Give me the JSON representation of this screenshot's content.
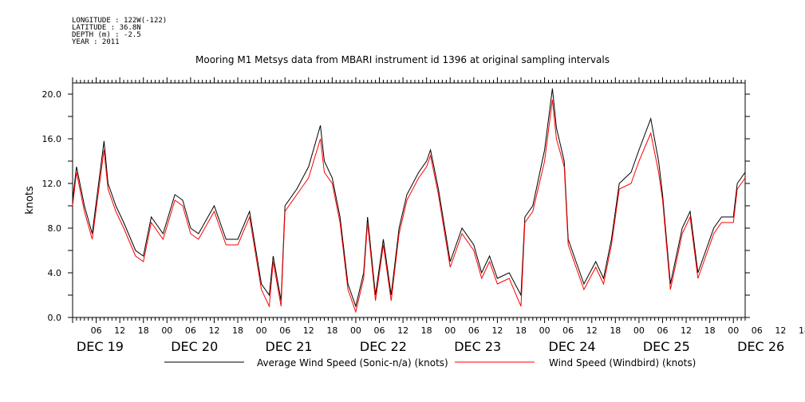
{
  "header": {
    "longitude": "LONGITUDE : 122W(-122)",
    "latitude": "LATITUDE : 36.8N",
    "depth": "DEPTH (m) : -2.5",
    "year": "YEAR : 2011"
  },
  "chart_data": {
    "type": "line",
    "title": "Mooring M1 Metsys data from MBARI instrument id 1396 at original sampling intervals",
    "ylabel": "knots",
    "ylim": [
      0,
      21
    ],
    "y_ticks": [
      "0.0",
      "4.0",
      "8.0",
      "12.0",
      "16.0",
      "20.0"
    ],
    "hour_ticks": [
      "06",
      "12",
      "18",
      "00",
      "06",
      "12",
      "18",
      "00",
      "06",
      "12",
      "18",
      "00",
      "06",
      "12",
      "18",
      "00",
      "06",
      "12",
      "18",
      "00",
      "06",
      "12",
      "18",
      "00",
      "06",
      "12",
      "18",
      "00",
      "06",
      "12",
      "18",
      "00"
    ],
    "day_labels": [
      "DEC 19",
      "DEC 20",
      "DEC 21",
      "DEC 22",
      "DEC 23",
      "DEC 24",
      "DEC 25",
      "DEC 26"
    ],
    "x_start": "2011-12-19 00:00",
    "x_end": "2011-12-26 03:00",
    "grid": false,
    "legend_position": "bottom",
    "series": [
      {
        "name": "Average Wind Speed (Sonic-n/a) (knots)",
        "color": "#000000",
        "points": [
          [
            "2011-12-19 00:00",
            10.5
          ],
          [
            "2011-12-19 01:00",
            13.5
          ],
          [
            "2011-12-19 03:00",
            10.0
          ],
          [
            "2011-12-19 05:00",
            7.5
          ],
          [
            "2011-12-19 08:00",
            15.8
          ],
          [
            "2011-12-19 09:00",
            12.0
          ],
          [
            "2011-12-19 11:00",
            10.0
          ],
          [
            "2011-12-19 13:00",
            8.5
          ],
          [
            "2011-12-19 16:00",
            6.0
          ],
          [
            "2011-12-19 18:00",
            5.5
          ],
          [
            "2011-12-19 20:00",
            9.0
          ],
          [
            "2011-12-19 23:00",
            7.5
          ],
          [
            "2011-12-20 02:00",
            11.0
          ],
          [
            "2011-12-20 04:00",
            10.5
          ],
          [
            "2011-12-20 06:00",
            8.0
          ],
          [
            "2011-12-20 08:00",
            7.5
          ],
          [
            "2011-12-20 12:00",
            10.0
          ],
          [
            "2011-12-20 15:00",
            7.0
          ],
          [
            "2011-12-20 18:00",
            7.0
          ],
          [
            "2011-12-20 21:00",
            9.5
          ],
          [
            "2011-12-21 00:00",
            3.0
          ],
          [
            "2011-12-21 02:00",
            2.0
          ],
          [
            "2011-12-21 03:00",
            5.5
          ],
          [
            "2011-12-21 05:00",
            1.5
          ],
          [
            "2011-12-21 06:00",
            10.0
          ],
          [
            "2011-12-21 09:00",
            11.5
          ],
          [
            "2011-12-21 12:00",
            13.5
          ],
          [
            "2011-12-21 15:00",
            17.2
          ],
          [
            "2011-12-21 16:00",
            14.0
          ],
          [
            "2011-12-21 18:00",
            12.5
          ],
          [
            "2011-12-21 20:00",
            9.0
          ],
          [
            "2011-12-21 22:00",
            3.0
          ],
          [
            "2011-12-22 00:00",
            1.0
          ],
          [
            "2011-12-22 02:00",
            4.0
          ],
          [
            "2011-12-22 03:00",
            9.0
          ],
          [
            "2011-12-22 05:00",
            2.0
          ],
          [
            "2011-12-22 07:00",
            7.0
          ],
          [
            "2011-12-22 09:00",
            2.0
          ],
          [
            "2011-12-22 11:00",
            8.0
          ],
          [
            "2011-12-22 13:00",
            11.0
          ],
          [
            "2011-12-22 16:00",
            13.0
          ],
          [
            "2011-12-22 18:00",
            14.0
          ],
          [
            "2011-12-22 19:00",
            15.0
          ],
          [
            "2011-12-22 21:00",
            11.5
          ],
          [
            "2011-12-23 00:00",
            5.0
          ],
          [
            "2011-12-23 03:00",
            8.0
          ],
          [
            "2011-12-23 06:00",
            6.5
          ],
          [
            "2011-12-23 08:00",
            4.0
          ],
          [
            "2011-12-23 10:00",
            5.5
          ],
          [
            "2011-12-23 12:00",
            3.5
          ],
          [
            "2011-12-23 15:00",
            4.0
          ],
          [
            "2011-12-23 18:00",
            2.0
          ],
          [
            "2011-12-23 19:00",
            9.0
          ],
          [
            "2011-12-23 21:00",
            10.0
          ],
          [
            "2011-12-24 00:00",
            15.0
          ],
          [
            "2011-12-24 02:00",
            20.5
          ],
          [
            "2011-12-24 03:00",
            17.0
          ],
          [
            "2011-12-24 05:00",
            14.0
          ],
          [
            "2011-12-24 06:00",
            7.0
          ],
          [
            "2011-12-24 08:00",
            5.0
          ],
          [
            "2011-12-24 10:00",
            3.0
          ],
          [
            "2011-12-24 13:00",
            5.0
          ],
          [
            "2011-12-24 15:00",
            3.5
          ],
          [
            "2011-12-24 17:00",
            7.0
          ],
          [
            "2011-12-24 19:00",
            12.0
          ],
          [
            "2011-12-24 22:00",
            13.0
          ],
          [
            "2011-12-25 00:00",
            15.0
          ],
          [
            "2011-12-25 03:00",
            17.8
          ],
          [
            "2011-12-25 05:00",
            14.0
          ],
          [
            "2011-12-25 06:00",
            11.0
          ],
          [
            "2011-12-25 08:00",
            3.0
          ],
          [
            "2011-12-25 11:00",
            8.0
          ],
          [
            "2011-12-25 13:00",
            9.5
          ],
          [
            "2011-12-25 15:00",
            4.0
          ],
          [
            "2011-12-25 17:00",
            6.0
          ],
          [
            "2011-12-25 19:00",
            8.0
          ],
          [
            "2011-12-25 21:00",
            9.0
          ],
          [
            "2011-12-26 00:00",
            9.0
          ],
          [
            "2011-12-26 01:00",
            12.0
          ],
          [
            "2011-12-26 03:00",
            13.0
          ]
        ]
      },
      {
        "name": "Wind Speed (Windbird) (knots)",
        "color": "#ff0000",
        "points": [
          [
            "2011-12-19 00:00",
            10.0
          ],
          [
            "2011-12-19 01:00",
            13.0
          ],
          [
            "2011-12-19 03:00",
            9.5
          ],
          [
            "2011-12-19 05:00",
            7.0
          ],
          [
            "2011-12-19 08:00",
            15.0
          ],
          [
            "2011-12-19 09:00",
            11.5
          ],
          [
            "2011-12-19 11:00",
            9.5
          ],
          [
            "2011-12-19 13:00",
            8.0
          ],
          [
            "2011-12-19 16:00",
            5.5
          ],
          [
            "2011-12-19 18:00",
            5.0
          ],
          [
            "2011-12-19 20:00",
            8.5
          ],
          [
            "2011-12-19 23:00",
            7.0
          ],
          [
            "2011-12-20 02:00",
            10.5
          ],
          [
            "2011-12-20 04:00",
            10.0
          ],
          [
            "2011-12-20 06:00",
            7.5
          ],
          [
            "2011-12-20 08:00",
            7.0
          ],
          [
            "2011-12-20 12:00",
            9.5
          ],
          [
            "2011-12-20 15:00",
            6.5
          ],
          [
            "2011-12-20 18:00",
            6.5
          ],
          [
            "2011-12-20 21:00",
            9.0
          ],
          [
            "2011-12-21 00:00",
            2.5
          ],
          [
            "2011-12-21 02:00",
            1.0
          ],
          [
            "2011-12-21 03:00",
            5.0
          ],
          [
            "2011-12-21 05:00",
            1.0
          ],
          [
            "2011-12-21 06:00",
            9.5
          ],
          [
            "2011-12-21 09:00",
            11.0
          ],
          [
            "2011-12-21 12:00",
            12.5
          ],
          [
            "2011-12-21 15:00",
            16.0
          ],
          [
            "2011-12-21 16:00",
            13.0
          ],
          [
            "2011-12-21 18:00",
            12.0
          ],
          [
            "2011-12-21 20:00",
            8.5
          ],
          [
            "2011-12-21 22:00",
            2.5
          ],
          [
            "2011-12-22 00:00",
            0.5
          ],
          [
            "2011-12-22 02:00",
            3.5
          ],
          [
            "2011-12-22 03:00",
            8.5
          ],
          [
            "2011-12-22 05:00",
            1.5
          ],
          [
            "2011-12-22 07:00",
            6.5
          ],
          [
            "2011-12-22 09:00",
            1.5
          ],
          [
            "2011-12-22 11:00",
            7.5
          ],
          [
            "2011-12-22 13:00",
            10.5
          ],
          [
            "2011-12-22 16:00",
            12.5
          ],
          [
            "2011-12-22 18:00",
            13.5
          ],
          [
            "2011-12-22 19:00",
            14.5
          ],
          [
            "2011-12-22 21:00",
            11.0
          ],
          [
            "2011-12-23 00:00",
            4.5
          ],
          [
            "2011-12-23 03:00",
            7.5
          ],
          [
            "2011-12-23 06:00",
            6.0
          ],
          [
            "2011-12-23 08:00",
            3.5
          ],
          [
            "2011-12-23 10:00",
            5.0
          ],
          [
            "2011-12-23 12:00",
            3.0
          ],
          [
            "2011-12-23 15:00",
            3.5
          ],
          [
            "2011-12-23 18:00",
            1.0
          ],
          [
            "2011-12-23 19:00",
            8.5
          ],
          [
            "2011-12-23 21:00",
            9.5
          ],
          [
            "2011-12-24 00:00",
            14.0
          ],
          [
            "2011-12-24 02:00",
            19.5
          ],
          [
            "2011-12-24 03:00",
            16.0
          ],
          [
            "2011-12-24 05:00",
            13.5
          ],
          [
            "2011-12-24 06:00",
            6.5
          ],
          [
            "2011-12-24 08:00",
            4.5
          ],
          [
            "2011-12-24 10:00",
            2.5
          ],
          [
            "2011-12-24 13:00",
            4.5
          ],
          [
            "2011-12-24 15:00",
            3.0
          ],
          [
            "2011-12-24 17:00",
            6.5
          ],
          [
            "2011-12-24 19:00",
            11.5
          ],
          [
            "2011-12-24 22:00",
            12.0
          ],
          [
            "2011-12-25 00:00",
            14.0
          ],
          [
            "2011-12-25 03:00",
            16.5
          ],
          [
            "2011-12-25 05:00",
            13.0
          ],
          [
            "2011-12-25 06:00",
            10.5
          ],
          [
            "2011-12-25 08:00",
            2.5
          ],
          [
            "2011-12-25 11:00",
            7.5
          ],
          [
            "2011-12-25 13:00",
            9.0
          ],
          [
            "2011-12-25 15:00",
            3.5
          ],
          [
            "2011-12-25 17:00",
            5.5
          ],
          [
            "2011-12-25 19:00",
            7.5
          ],
          [
            "2011-12-25 21:00",
            8.5
          ],
          [
            "2011-12-26 00:00",
            8.5
          ],
          [
            "2011-12-26 01:00",
            11.5
          ],
          [
            "2011-12-26 03:00",
            12.5
          ]
        ]
      }
    ]
  }
}
